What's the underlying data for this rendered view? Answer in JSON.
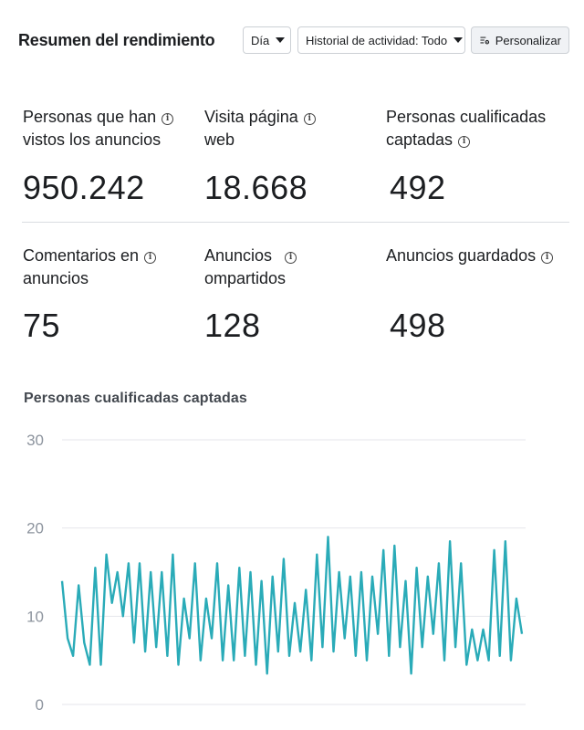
{
  "header": {
    "title": "Resumen del rendimiento",
    "day_label": "Día",
    "history_label": "Historial de actividad: Todo",
    "customize_label": "Personalizar"
  },
  "metrics": [
    {
      "label_line1": "Personas que han",
      "label_line2": "vistos los anuncios",
      "value": "950.242"
    },
    {
      "label_line1": "Visita página",
      "label_line2": "web",
      "value": "18.668"
    },
    {
      "label_line1": "Personas cualificadas",
      "label_line2": "captadas",
      "value": "492"
    },
    {
      "label_line1": "Comentarios en",
      "label_line2": "anuncios",
      "value": "75"
    },
    {
      "label_line1": "Anuncios",
      "label_line2": "ompartidos",
      "value": "128"
    },
    {
      "label_line1": "Anuncios guardados",
      "label_line2": "",
      "value": "498"
    }
  ],
  "icons": {
    "info": "info-icon",
    "customize": "gear-icon",
    "dropdown": "caret-down-icon"
  },
  "chart_data": {
    "type": "line",
    "title": "Personas cualificadas captadas",
    "ylim": [
      0,
      30
    ],
    "yticks": [
      0,
      10,
      20,
      30
    ],
    "grid": true,
    "color": "#2aabb8",
    "values": [
      14,
      7.5,
      5.5,
      13.5,
      7,
      4.5,
      15.5,
      4.5,
      17,
      11.5,
      15,
      10,
      16,
      7,
      16,
      6,
      15,
      6.5,
      15,
      5.5,
      17,
      4.5,
      12,
      7.5,
      16,
      5,
      12,
      7.5,
      16,
      5,
      13.5,
      5,
      15.5,
      5.5,
      15,
      4.5,
      14,
      3.5,
      14.5,
      6,
      16.5,
      5.5,
      11.5,
      6,
      13,
      5,
      17,
      6.5,
      19,
      6,
      15,
      7.5,
      14.5,
      5.5,
      15,
      5,
      14.5,
      8,
      17.5,
      5.5,
      18,
      6.5,
      14,
      3.5,
      15.5,
      6.5,
      14.5,
      8,
      16,
      5,
      18.5,
      6.5,
      16,
      4.5,
      8.5,
      5,
      8.5,
      5,
      17.5,
      5.5,
      18.5,
      5,
      12,
      8
    ]
  }
}
